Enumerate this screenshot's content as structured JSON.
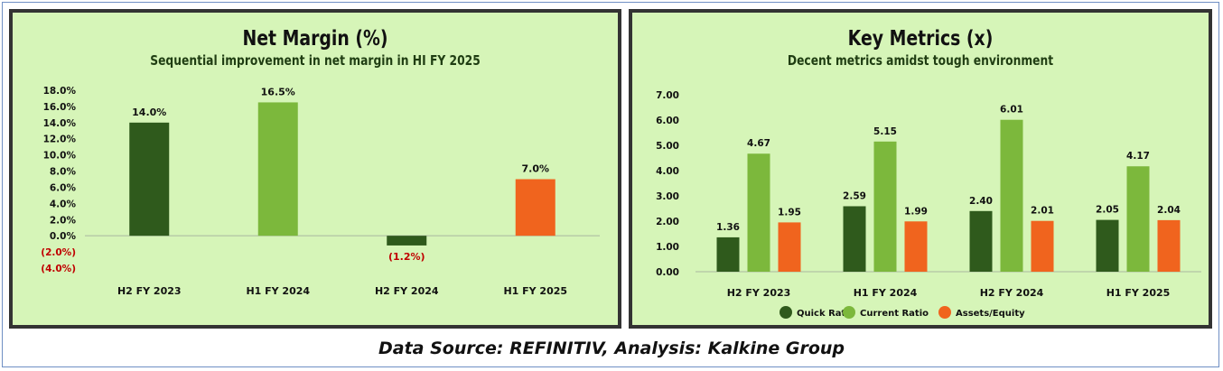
{
  "source_note": "Data Source: REFINITIV, Analysis: Kalkine Group",
  "charts": {
    "net_margin": {
      "title": "Net Margin (%)",
      "subtitle": "Sequential improvement in net margin in HI FY 2025"
    },
    "key_metrics": {
      "title": "Key Metrics (x)",
      "subtitle": "Decent metrics amidst tough environment"
    }
  },
  "colors": {
    "panel_bg": "#d6f5b8",
    "dark_green": "#2f5a1c",
    "light_green": "#7cb83c",
    "orange": "#f0641e",
    "negative_label": "#c00000"
  },
  "chart_data": [
    {
      "type": "bar",
      "title": "Net Margin (%)",
      "subtitle": "Sequential improvement in net margin in HI FY 2025",
      "categories": [
        "H2 FY 2023",
        "H1 FY 2024",
        "H2 FY 2024",
        "H1 FY 2025"
      ],
      "values": [
        14.0,
        16.5,
        -1.2,
        7.0
      ],
      "data_labels": [
        "14.0%",
        "16.5%",
        "(1.2%)",
        "7.0%"
      ],
      "bar_colors": [
        "#2f5a1c",
        "#7cb83c",
        "#2f5a1c",
        "#f0641e"
      ],
      "ylim": [
        -4.0,
        18.0
      ],
      "yticks": [
        18,
        16,
        14,
        12,
        10,
        8,
        6,
        4,
        2,
        0,
        -2,
        -4
      ],
      "ytick_labels": [
        "18.0%",
        "16.0%",
        "14.0%",
        "12.0%",
        "10.0%",
        "8.0%",
        "6.0%",
        "4.0%",
        "2.0%",
        "0.0%",
        "(2.0%)",
        "(4.0%)"
      ],
      "grid": false,
      "legend": "none"
    },
    {
      "type": "bar",
      "title": "Key Metrics (x)",
      "subtitle": "Decent metrics amidst tough environment",
      "categories": [
        "H2 FY 2023",
        "H1 FY 2024",
        "H2 FY 2024",
        "H1 FY 2025"
      ],
      "series": [
        {
          "name": "Quick Ratio",
          "values": [
            1.36,
            2.59,
            2.4,
            2.05
          ],
          "color": "#2f5a1c"
        },
        {
          "name": "Current Ratio",
          "values": [
            4.67,
            5.15,
            6.01,
            4.17
          ],
          "color": "#7cb83c"
        },
        {
          "name": "Assets/Equity",
          "values": [
            1.95,
            1.99,
            2.01,
            2.04
          ],
          "color": "#f0641e"
        }
      ],
      "ylim": [
        0,
        7.0
      ],
      "yticks": [
        0,
        1,
        2,
        3,
        4,
        5,
        6,
        7
      ],
      "ytick_labels": [
        "0.00",
        "1.00",
        "2.00",
        "3.00",
        "4.00",
        "5.00",
        "6.00",
        "7.00"
      ],
      "grid": false,
      "legend": "bottom"
    }
  ]
}
